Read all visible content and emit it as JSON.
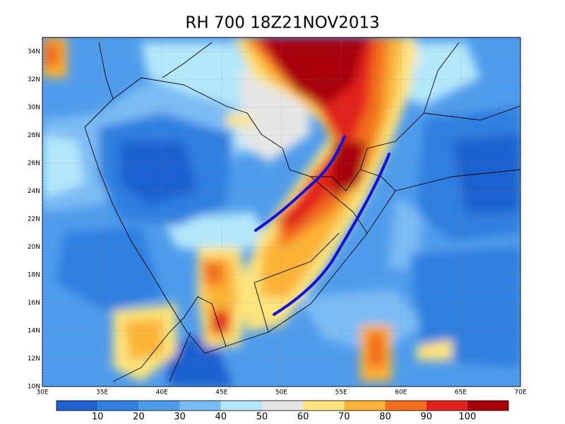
{
  "title": "RH 700 18Z21NOV2013",
  "map": {
    "lon_ticks": [
      "30E",
      "35E",
      "40E",
      "45E",
      "50E",
      "55E",
      "60E",
      "65E",
      "70E"
    ],
    "lat_ticks": [
      "10N",
      "12N",
      "14N",
      "16N",
      "18N",
      "20N",
      "22N",
      "24N",
      "26N",
      "28N",
      "30N",
      "32N",
      "34N"
    ]
  },
  "colorbar": {
    "colors": [
      "#1e60cf",
      "#2f7fe0",
      "#4f9cec",
      "#7cbcf4",
      "#b2e8fa",
      "#e6e6e6",
      "#fde47c",
      "#fbb236",
      "#f26f1e",
      "#e2201c",
      "#a8000a"
    ],
    "labels": [
      10,
      20,
      30,
      40,
      50,
      60,
      70,
      80,
      90,
      100
    ]
  }
}
